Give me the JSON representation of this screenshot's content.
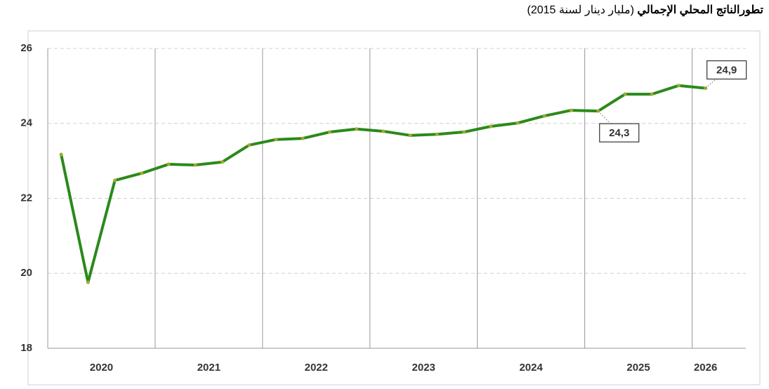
{
  "chart_data": {
    "type": "line",
    "title": "تطورالناتج المحلي الإجمالي",
    "subtitle": "(مليار دينار لسنة 2015)",
    "categories": [
      "2020",
      null,
      null,
      null,
      "2021",
      null,
      null,
      null,
      "2022",
      null,
      null,
      null,
      "2023",
      null,
      null,
      null,
      "2024",
      null,
      null,
      null,
      "2025",
      null,
      null,
      null,
      "2026"
    ],
    "series": [
      {
        "name": "GDP",
        "color": "#2a8a1a",
        "values": [
          23.17,
          19.76,
          22.48,
          22.67,
          22.91,
          22.89,
          22.97,
          23.42,
          23.57,
          23.6,
          23.77,
          23.85,
          23.79,
          23.68,
          23.71,
          23.77,
          23.92,
          24.01,
          24.2,
          24.35,
          24.33,
          24.78,
          24.78,
          25.01,
          24.94
        ],
        "value_labels": [
          null,
          null,
          null,
          null,
          null,
          null,
          null,
          null,
          null,
          null,
          null,
          null,
          null,
          null,
          null,
          null,
          null,
          null,
          null,
          null,
          "24,3",
          null,
          null,
          null,
          "24,9"
        ]
      }
    ],
    "ylim": [
      18,
      26
    ],
    "yticks": [
      18,
      20,
      22,
      24,
      26
    ],
    "grid": true
  }
}
